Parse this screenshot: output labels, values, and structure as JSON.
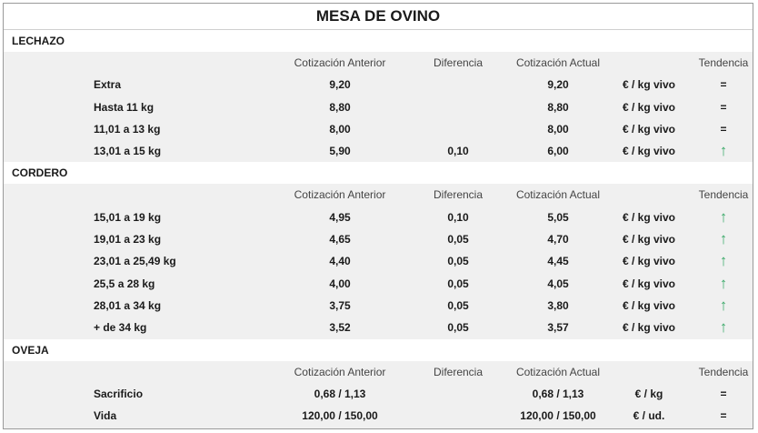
{
  "title": "MESA DE OVINO",
  "headers": {
    "anterior": "Cotización Anterior",
    "diferencia": "Diferencia",
    "actual": "Cotización Actual",
    "tendencia": "Tendencia"
  },
  "trend_symbols": {
    "up": "↑",
    "eq": "="
  },
  "colors": {
    "trend_up": "#3aa968"
  },
  "sections": [
    {
      "name": "LECHAZO",
      "rows": [
        {
          "label": "Extra",
          "anterior": "9,20",
          "diferencia": "",
          "actual": "9,20",
          "unidad": "€ / kg vivo",
          "tendencia": "eq"
        },
        {
          "label": "Hasta 11 kg",
          "anterior": "8,80",
          "diferencia": "",
          "actual": "8,80",
          "unidad": "€ / kg vivo",
          "tendencia": "eq"
        },
        {
          "label": "11,01 a 13 kg",
          "anterior": "8,00",
          "diferencia": "",
          "actual": "8,00",
          "unidad": "€ / kg vivo",
          "tendencia": "eq"
        },
        {
          "label": "13,01 a 15 kg",
          "anterior": "5,90",
          "diferencia": "0,10",
          "actual": "6,00",
          "unidad": "€ / kg vivo",
          "tendencia": "up"
        }
      ]
    },
    {
      "name": "CORDERO",
      "rows": [
        {
          "label": "15,01 a 19 kg",
          "anterior": "4,95",
          "diferencia": "0,10",
          "actual": "5,05",
          "unidad": "€ / kg vivo",
          "tendencia": "up"
        },
        {
          "label": "19,01 a 23 kg",
          "anterior": "4,65",
          "diferencia": "0,05",
          "actual": "4,70",
          "unidad": "€ / kg vivo",
          "tendencia": "up"
        },
        {
          "label": "23,01 a 25,49 kg",
          "anterior": "4,40",
          "diferencia": "0,05",
          "actual": "4,45",
          "unidad": "€ / kg vivo",
          "tendencia": "up"
        },
        {
          "label": "25,5 a 28 kg",
          "anterior": "4,00",
          "diferencia": "0,05",
          "actual": "4,05",
          "unidad": "€ / kg vivo",
          "tendencia": "up"
        },
        {
          "label": "28,01 a 34 kg",
          "anterior": "3,75",
          "diferencia": "0,05",
          "actual": "3,80",
          "unidad": "€ / kg vivo",
          "tendencia": "up"
        },
        {
          "label": "+ de 34 kg",
          "anterior": "3,52",
          "diferencia": "0,05",
          "actual": "3,57",
          "unidad": "€ / kg vivo",
          "tendencia": "up"
        }
      ]
    },
    {
      "name": "OVEJA",
      "rows": [
        {
          "label": "Sacrificio",
          "anterior": "0,68 / 1,13",
          "diferencia": "",
          "actual": "0,68 / 1,13",
          "unidad": "€ / kg",
          "tendencia": "eq"
        },
        {
          "label": "Vida",
          "anterior": "120,00 / 150,00",
          "diferencia": "",
          "actual": "120,00 / 150,00",
          "unidad": "€ / ud.",
          "tendencia": "eq"
        }
      ]
    }
  ]
}
